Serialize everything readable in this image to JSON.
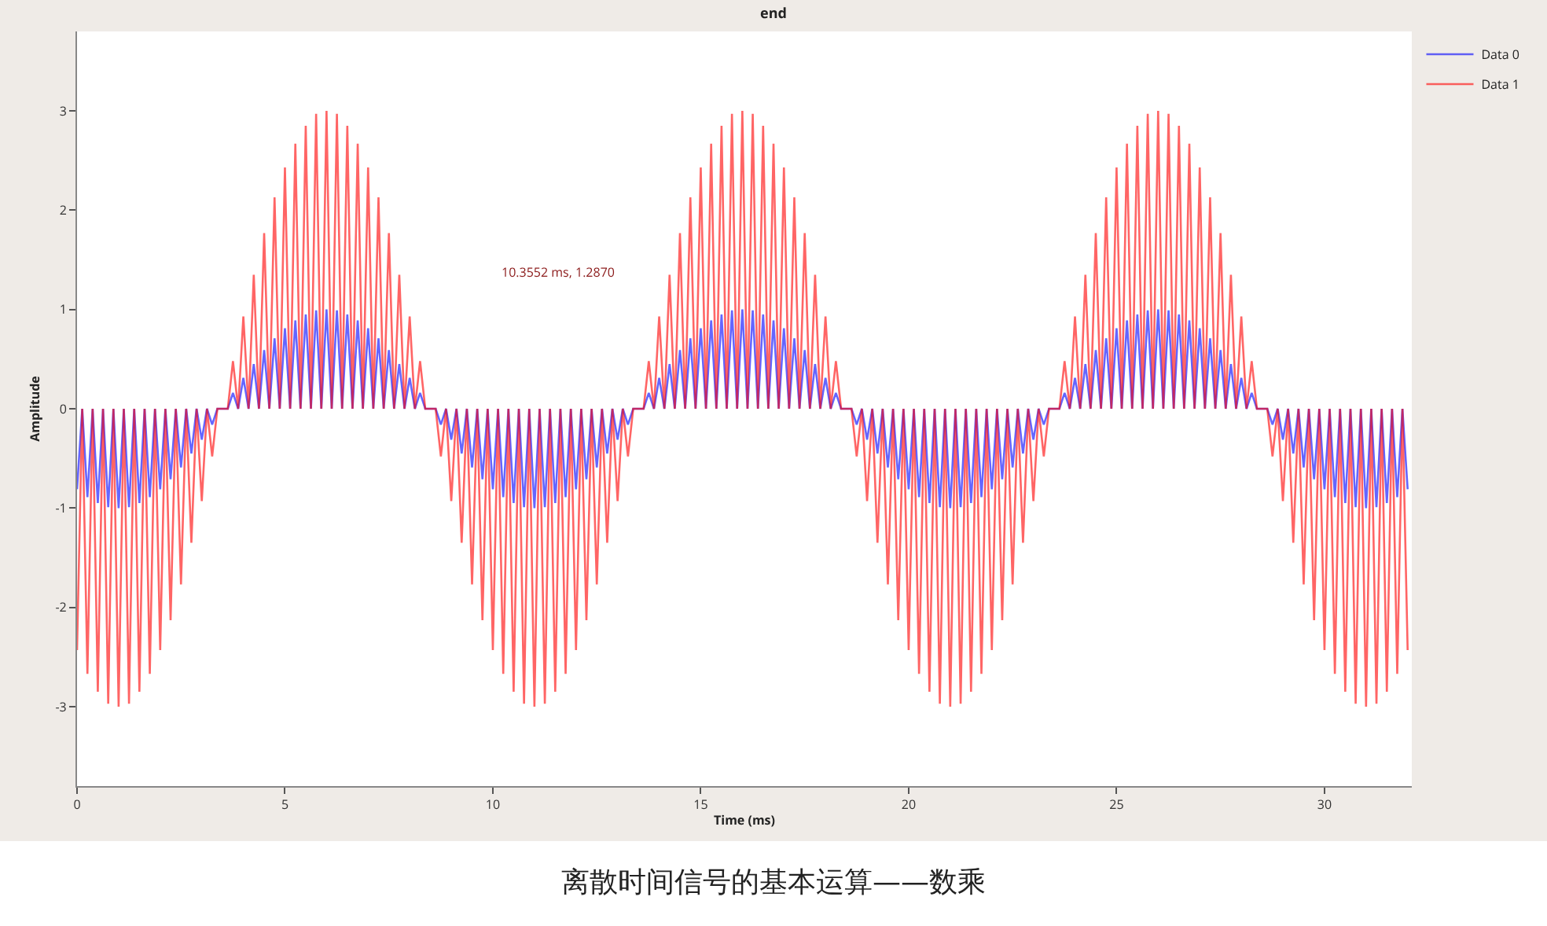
{
  "chart_data": {
    "type": "line",
    "title": "end",
    "xlabel": "Time (ms)",
    "ylabel": "Amplitude",
    "x": [
      0,
      0.125,
      0.25,
      0.375,
      0.5,
      0.625,
      0.75,
      0.875,
      1,
      1.125,
      1.25,
      1.375,
      1.5,
      1.625,
      1.75,
      1.875,
      2,
      2.125,
      2.25,
      2.375,
      2.5,
      2.625,
      2.75,
      2.875,
      3,
      3.125,
      3.25,
      3.375,
      3.5,
      3.625,
      3.75,
      3.875,
      4,
      4.125,
      4.25,
      4.375,
      4.5,
      4.625,
      4.75,
      4.875,
      5,
      5.125,
      5.25,
      5.375,
      5.5,
      5.625,
      5.75,
      5.875,
      6,
      6.125,
      6.25,
      6.375,
      6.5,
      6.625,
      6.75,
      6.875,
      7,
      7.125,
      7.25,
      7.375,
      7.5,
      7.625,
      7.75,
      7.875,
      8,
      8.125,
      8.25,
      8.375,
      8.5,
      8.625,
      8.75,
      8.875,
      9,
      9.125,
      9.25,
      9.375,
      9.5,
      9.625,
      9.75,
      9.875,
      10,
      10.125,
      10.25,
      10.375,
      10.5,
      10.625,
      10.75,
      10.875,
      11,
      11.125,
      11.25,
      11.375,
      11.5,
      11.625,
      11.75,
      11.875,
      12,
      12.125,
      12.25,
      12.375,
      12.5,
      12.625,
      12.75,
      12.875,
      13,
      13.125,
      13.25,
      13.375,
      13.5,
      13.625,
      13.75,
      13.875,
      14,
      14.125,
      14.25,
      14.375,
      14.5,
      14.625,
      14.75,
      14.875,
      15,
      15.125,
      15.25,
      15.375,
      15.5,
      15.625,
      15.75,
      15.875,
      16,
      16.125,
      16.25,
      16.375,
      16.5,
      16.625,
      16.75,
      16.875,
      17,
      17.125,
      17.25,
      17.375,
      17.5,
      17.625,
      17.75,
      17.875,
      18,
      18.125,
      18.25,
      18.375,
      18.5,
      18.625,
      18.75,
      18.875,
      19,
      19.125,
      19.25,
      19.375,
      19.5,
      19.625,
      19.75,
      19.875,
      20,
      20.125,
      20.25,
      20.375,
      20.5,
      20.625,
      20.75,
      20.875,
      21,
      21.125,
      21.25,
      21.375,
      21.5,
      21.625,
      21.75,
      21.875,
      22,
      22.125,
      22.25,
      22.375,
      22.5,
      22.625,
      22.75,
      22.875,
      23,
      23.125,
      23.25,
      23.375,
      23.5,
      23.625,
      23.75,
      23.875,
      24,
      24.125,
      24.25,
      24.375,
      24.5,
      24.625,
      24.75,
      24.875,
      25,
      25.125,
      25.25,
      25.375,
      25.5,
      25.625,
      25.75,
      25.875,
      26,
      26.125,
      26.25,
      26.375,
      26.5,
      26.625,
      26.75,
      26.875,
      27,
      27.125,
      27.25,
      27.375,
      27.5,
      27.625,
      27.75,
      27.875,
      28,
      28.125,
      28.25,
      28.375,
      28.5,
      28.625,
      28.75,
      28.875,
      29,
      29.125,
      29.25,
      29.375,
      29.5,
      29.625,
      29.75,
      29.875,
      30,
      30.125,
      30.25,
      30.375,
      30.5,
      30.625,
      30.75,
      30.875,
      31,
      31.125,
      31.25,
      31.375,
      31.5,
      31.625,
      31.75,
      31.875,
      32
    ],
    "series": [
      {
        "name": "Data 0",
        "color": "#0000ff",
        "values": [
          -0.81,
          0,
          -0.89,
          0,
          -0.95,
          0,
          -0.99,
          0,
          -1,
          0,
          -0.99,
          0,
          -0.95,
          0,
          -0.89,
          0,
          -0.81,
          0,
          -0.71,
          0,
          -0.59,
          0,
          -0.45,
          0,
          -0.31,
          0,
          -0.16,
          0,
          0,
          0,
          0.16,
          0,
          0.31,
          0,
          0.45,
          0,
          0.59,
          0,
          0.71,
          0,
          0.81,
          0,
          0.89,
          0,
          0.95,
          0,
          0.99,
          0,
          1,
          0,
          0.99,
          0,
          0.95,
          0,
          0.89,
          0,
          0.81,
          0,
          0.71,
          0,
          0.59,
          0,
          0.45,
          0,
          0.31,
          0,
          0.16,
          0,
          0,
          0,
          -0.16,
          0,
          -0.31,
          0,
          -0.45,
          0,
          -0.59,
          0,
          -0.71,
          0,
          -0.81,
          0,
          -0.89,
          0,
          -0.95,
          0,
          -0.99,
          0,
          -1,
          0,
          -0.99,
          0,
          -0.95,
          0,
          -0.89,
          0,
          -0.81,
          0,
          -0.71,
          0,
          -0.59,
          0,
          -0.45,
          0,
          -0.31,
          0,
          -0.16,
          0,
          0,
          0,
          0.16,
          0,
          0.31,
          0,
          0.45,
          0,
          0.59,
          0,
          0.71,
          0,
          0.81,
          0,
          0.89,
          0,
          0.95,
          0,
          0.99,
          0,
          1,
          0,
          0.99,
          0,
          0.95,
          0,
          0.89,
          0,
          0.81,
          0,
          0.71,
          0,
          0.59,
          0,
          0.45,
          0,
          0.31,
          0,
          0.16,
          0,
          0,
          0,
          -0.16,
          0,
          -0.31,
          0,
          -0.45,
          0,
          -0.59,
          0,
          -0.71,
          0,
          -0.81,
          0,
          -0.89,
          0,
          -0.95,
          0,
          -0.99,
          0,
          -1,
          0,
          -0.99,
          0,
          -0.95,
          0,
          -0.89,
          0,
          -0.81,
          0,
          -0.71,
          0,
          -0.59,
          0,
          -0.45,
          0,
          -0.31,
          0,
          -0.16,
          0,
          0,
          0,
          0.16,
          0,
          0.31,
          0,
          0.45,
          0,
          0.59,
          0,
          0.71,
          0,
          0.81,
          0,
          0.89,
          0,
          0.95,
          0,
          0.99,
          0,
          1,
          0,
          0.99,
          0,
          0.95,
          0,
          0.89,
          0,
          0.81,
          0,
          0.71,
          0,
          0.59,
          0,
          0.45,
          0,
          0.31,
          0,
          0.16,
          0,
          0,
          0,
          -0.16,
          0,
          -0.31,
          0,
          -0.45,
          0,
          -0.59,
          0,
          -0.71,
          0,
          -0.81,
          0,
          -0.89,
          0,
          -0.95,
          0,
          -0.99,
          0,
          -1,
          0,
          -0.99,
          0,
          -0.95,
          0,
          -0.89,
          0,
          -0.81
        ]
      },
      {
        "name": "Data 1",
        "color": "#ff0000",
        "values": [
          -2.43,
          0,
          -2.67,
          0,
          -2.85,
          0,
          -2.97,
          0,
          -3,
          0,
          -2.97,
          0,
          -2.85,
          0,
          -2.67,
          0,
          -2.43,
          0,
          -2.13,
          0,
          -1.77,
          0,
          -1.35,
          0,
          -0.93,
          0,
          -0.48,
          0,
          0,
          0,
          0.48,
          0,
          0.93,
          0,
          1.35,
          0,
          1.77,
          0,
          2.13,
          0,
          2.43,
          0,
          2.67,
          0,
          2.85,
          0,
          2.97,
          0,
          3,
          0,
          2.97,
          0,
          2.85,
          0,
          2.67,
          0,
          2.43,
          0,
          2.13,
          0,
          1.77,
          0,
          1.35,
          0,
          0.93,
          0,
          0.48,
          0,
          0,
          0,
          -0.48,
          0,
          -0.93,
          0,
          -1.35,
          0,
          -1.77,
          0,
          -2.13,
          0,
          -2.43,
          0,
          -2.67,
          0,
          -2.85,
          0,
          -2.97,
          0,
          -3,
          0,
          -2.97,
          0,
          -2.85,
          0,
          -2.67,
          0,
          -2.43,
          0,
          -2.13,
          0,
          -1.77,
          0,
          -1.35,
          0,
          -0.93,
          0,
          -0.48,
          0,
          0,
          0,
          0.48,
          0,
          0.93,
          0,
          1.35,
          0,
          1.77,
          0,
          2.13,
          0,
          2.43,
          0,
          2.67,
          0,
          2.85,
          0,
          2.97,
          0,
          3,
          0,
          2.97,
          0,
          2.85,
          0,
          2.67,
          0,
          2.43,
          0,
          2.13,
          0,
          1.77,
          0,
          1.35,
          0,
          0.93,
          0,
          0.48,
          0,
          0,
          0,
          -0.48,
          0,
          -0.93,
          0,
          -1.35,
          0,
          -1.77,
          0,
          -2.13,
          0,
          -2.43,
          0,
          -2.67,
          0,
          -2.85,
          0,
          -2.97,
          0,
          -3,
          0,
          -2.97,
          0,
          -2.85,
          0,
          -2.67,
          0,
          -2.43,
          0,
          -2.13,
          0,
          -1.77,
          0,
          -1.35,
          0,
          -0.93,
          0,
          -0.48,
          0,
          0,
          0,
          0.48,
          0,
          0.93,
          0,
          1.35,
          0,
          1.77,
          0,
          2.13,
          0,
          2.43,
          0,
          2.67,
          0,
          2.85,
          0,
          2.97,
          0,
          3,
          0,
          2.97,
          0,
          2.85,
          0,
          2.67,
          0,
          2.43,
          0,
          2.13,
          0,
          1.77,
          0,
          1.35,
          0,
          0.93,
          0,
          0.48,
          0,
          0,
          0,
          -0.48,
          0,
          -0.93,
          0,
          -1.35,
          0,
          -1.77,
          0,
          -2.13,
          0,
          -2.43,
          0,
          -2.67,
          0,
          -2.85,
          0,
          -2.97,
          0,
          -3,
          0,
          -2.97,
          0,
          -2.85,
          0,
          -2.67,
          0,
          -2.43
        ]
      }
    ],
    "xlim": [
      0,
      32.1
    ],
    "xticks": [
      0,
      5,
      10,
      15,
      20,
      25,
      30
    ],
    "ylim": [
      -3.8,
      3.8
    ],
    "yticks": [
      -3,
      -2,
      -1,
      0,
      1,
      2,
      3
    ],
    "grid": false,
    "legend": "top right",
    "line_style": "solid",
    "annotations": [
      "10.3552 ms, 1.2870",
      "离散时间信号的基本运算——数乘"
    ]
  }
}
